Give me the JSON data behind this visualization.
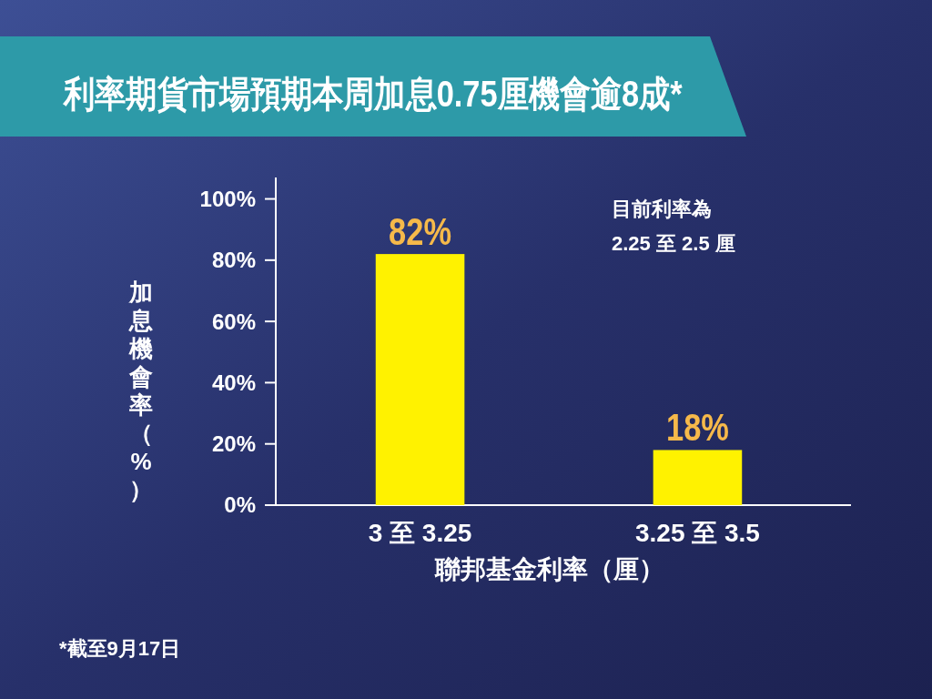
{
  "chart_data": {
    "type": "bar",
    "title": "利率期貨市場預期本周加息0.75厘機會逾8成*",
    "xlabel": "聯邦基金利率（厘）",
    "ylabel": "加息機會率（%）",
    "categories": [
      "3 至 3.25",
      "3.25 至 3.5"
    ],
    "values": [
      82,
      18
    ],
    "color": "#fff200",
    "value_labels": [
      "82%",
      "18%"
    ],
    "ylim": [
      0,
      107
    ],
    "yticks": [
      {
        "value": 0,
        "label": "0%"
      },
      {
        "value": 20,
        "label": "20%"
      },
      {
        "value": 40,
        "label": "40%"
      },
      {
        "value": 60,
        "label": "60%"
      },
      {
        "value": 80,
        "label": "80%"
      },
      {
        "value": 100,
        "label": "100%"
      }
    ],
    "grid": false,
    "annotations": [
      "目前利率為\n2.25 至 2.5 厘",
      "*截至9月17日"
    ]
  }
}
